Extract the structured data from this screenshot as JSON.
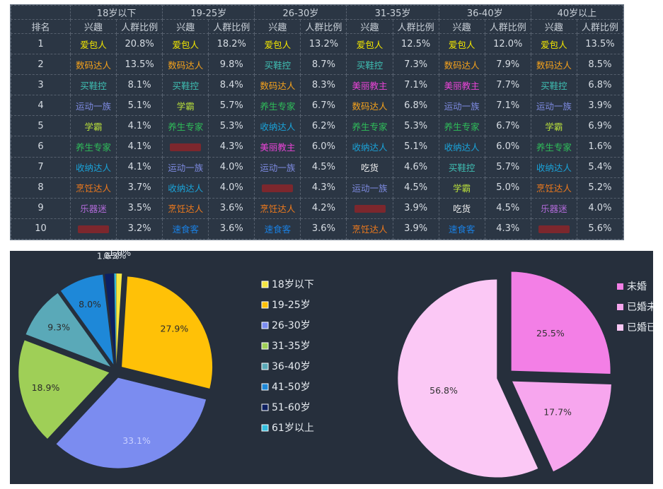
{
  "table": {
    "header_rank": "排名",
    "header_interest": "兴趣",
    "header_ratio": "人群比例",
    "age_groups": [
      "18岁以下",
      "19-25岁",
      "26-30岁",
      "31-35岁",
      "36-40岁",
      "40岁以上"
    ],
    "rows": [
      {
        "rank": "1",
        "cells": [
          [
            "爱包人",
            "20.8%"
          ],
          [
            "爱包人",
            "18.2%"
          ],
          [
            "爱包人",
            "13.2%"
          ],
          [
            "爱包人",
            "12.5%"
          ],
          [
            "爱包人",
            "12.0%"
          ],
          [
            "爱包人",
            "13.5%"
          ]
        ]
      },
      {
        "rank": "2",
        "cells": [
          [
            "数码达人",
            "13.5%"
          ],
          [
            "数码达人",
            "9.8%"
          ],
          [
            "买鞋控",
            "8.7%"
          ],
          [
            "买鞋控",
            "7.3%"
          ],
          [
            "数码达人",
            "7.9%"
          ],
          [
            "数码达人",
            "8.5%"
          ]
        ]
      },
      {
        "rank": "3",
        "cells": [
          [
            "买鞋控",
            "8.1%"
          ],
          [
            "买鞋控",
            "8.4%"
          ],
          [
            "数码达人",
            "8.3%"
          ],
          [
            "美丽教主",
            "7.1%"
          ],
          [
            "美丽教主",
            "7.7%"
          ],
          [
            "买鞋控",
            "6.8%"
          ]
        ]
      },
      {
        "rank": "4",
        "cells": [
          [
            "运动一族",
            "5.1%"
          ],
          [
            "学霸",
            "5.7%"
          ],
          [
            "养生专家",
            "6.7%"
          ],
          [
            "数码达人",
            "6.8%"
          ],
          [
            "运动一族",
            "7.1%"
          ],
          [
            "运动一族",
            "3.9%"
          ]
        ]
      },
      {
        "rank": "5",
        "cells": [
          [
            "学霸",
            "4.1%"
          ],
          [
            "养生专家",
            "5.3%"
          ],
          [
            "收纳达人",
            "6.2%"
          ],
          [
            "养生专家",
            "5.3%"
          ],
          [
            "养生专家",
            "6.7%"
          ],
          [
            "学霸",
            "6.9%"
          ]
        ]
      },
      {
        "rank": "6",
        "cells": [
          [
            "养生专家",
            "4.1%"
          ],
          [
            "",
            "4.3%"
          ],
          [
            "美丽教主",
            "6.0%"
          ],
          [
            "收纳达人",
            "5.1%"
          ],
          [
            "收纳达人",
            "6.0%"
          ],
          [
            "养生专家",
            "1.6%"
          ]
        ]
      },
      {
        "rank": "7",
        "cells": [
          [
            "收纳达人",
            "4.1%"
          ],
          [
            "运动一族",
            "4.0%"
          ],
          [
            "运动一族",
            "4.5%"
          ],
          [
            "吃货",
            "4.6%"
          ],
          [
            "买鞋控",
            "5.7%"
          ],
          [
            "收纳达人",
            "5.4%"
          ]
        ]
      },
      {
        "rank": "8",
        "cells": [
          [
            "烹饪达人",
            "3.7%"
          ],
          [
            "收纳达人",
            "4.0%"
          ],
          [
            "",
            "4.3%"
          ],
          [
            "运动一族",
            "4.5%"
          ],
          [
            "学霸",
            "5.0%"
          ],
          [
            "烹饪达人",
            "5.2%"
          ]
        ]
      },
      {
        "rank": "9",
        "cells": [
          [
            "乐器迷",
            "3.5%"
          ],
          [
            "烹饪达人",
            "3.6%"
          ],
          [
            "烹饪达人",
            "4.2%"
          ],
          [
            "",
            "3.9%"
          ],
          [
            "吃货",
            "4.5%"
          ],
          [
            "乐器迷",
            "4.0%"
          ]
        ]
      },
      {
        "rank": "10",
        "cells": [
          [
            "",
            "3.2%"
          ],
          [
            "速食客",
            "3.6%"
          ],
          [
            "速食客",
            "3.6%"
          ],
          [
            "烹饪达人",
            "3.9%"
          ],
          [
            "速食客",
            "4.3%"
          ],
          [
            "",
            "5.6%"
          ]
        ]
      }
    ],
    "interest_colors": {
      "爱包人": "#f2e600",
      "数码达人": "#f5a21c",
      "买鞋控": "#3fbfb3",
      "运动一族": "#7d8ae0",
      "学霸": "#b8de3c",
      "养生专家": "#2fbf5a",
      "收纳达人": "#1aa3d9",
      "烹饪达人": "#f07a1c",
      "乐器迷": "#b06ad8",
      "美丽教主": "#ea44d8",
      "速食客": "#1a7fe0",
      "吃货": "#f2f2f2",
      "": "#c01c1c"
    }
  },
  "chart_data": [
    {
      "type": "pie",
      "title": "",
      "categories": [
        "18岁以下",
        "19-25岁",
        "26-30岁",
        "31-35岁",
        "36-40岁",
        "41-50岁",
        "51-60岁",
        "61岁以上"
      ],
      "values": [
        1.0,
        27.9,
        33.1,
        18.9,
        9.3,
        8.0,
        1.6,
        0.3
      ],
      "labels": [
        "1.0%",
        "27.9%",
        "33.1%",
        "18.9%",
        "9.3%",
        "8.0%",
        "1.6%",
        "0.3%"
      ],
      "colors": [
        "#f5e642",
        "#ffc107",
        "#7b8cf0",
        "#9fcf57",
        "#5aa9b8",
        "#1e88d8",
        "#0d1f60",
        "#35c0e0"
      ],
      "legend_position": "right"
    },
    {
      "type": "pie",
      "title": "",
      "categories": [
        "未婚",
        "已婚未",
        "已婚已"
      ],
      "values": [
        25.5,
        17.7,
        56.8
      ],
      "labels": [
        "25.5%",
        "17.7%",
        "56.8%"
      ],
      "colors": [
        "#f37fe6",
        "#f7a6ee",
        "#fbc8f5"
      ],
      "legend_position": "right"
    }
  ]
}
